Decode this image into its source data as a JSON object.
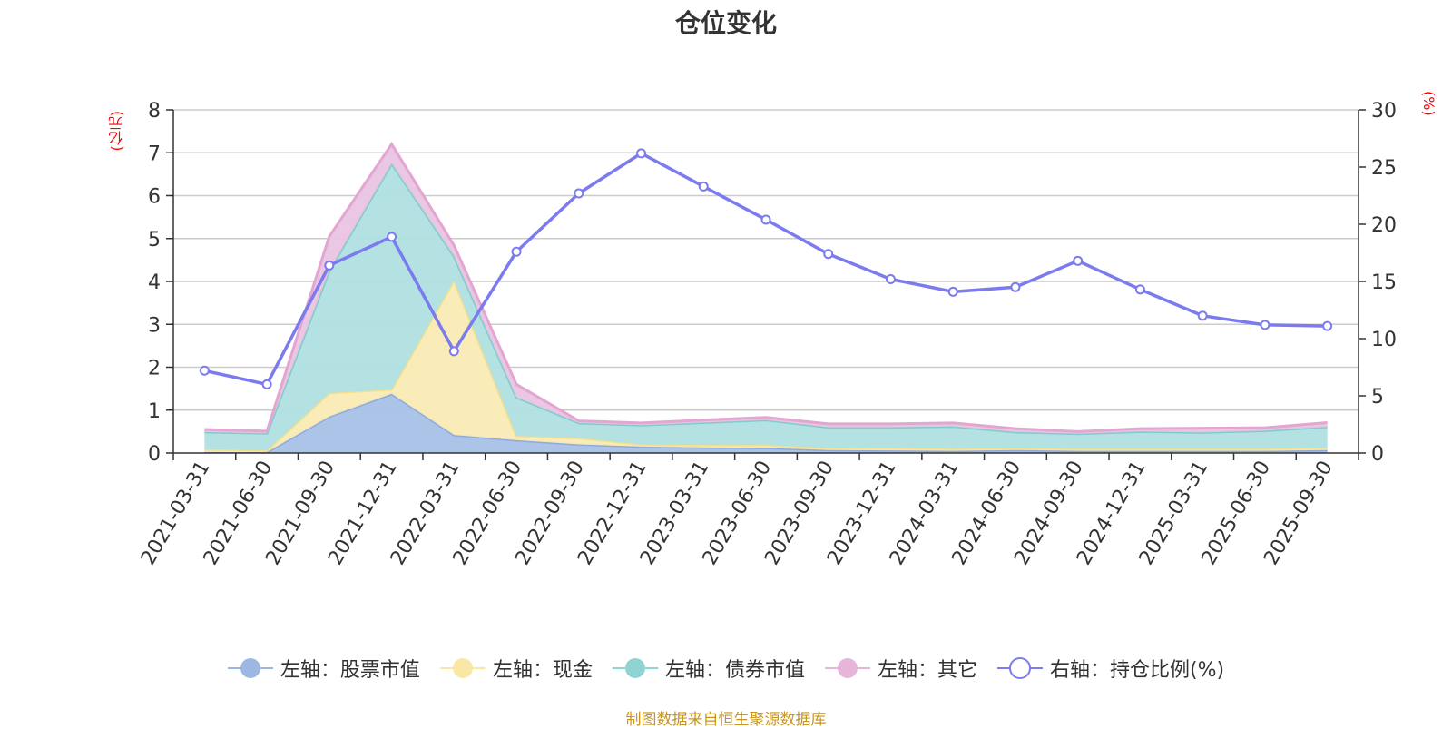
{
  "title": "仓位变化",
  "source": "制图数据来自恒生聚源数据库",
  "left_unit": "(亿元)",
  "right_unit": "(%)",
  "legend": [
    {
      "label": "左轴：股票市值",
      "color": "#9cb8e2",
      "marker": "filled"
    },
    {
      "label": "左轴：现金",
      "color": "#f9e7a6",
      "marker": "filled"
    },
    {
      "label": "左轴：债券市值",
      "color": "#8fd3d3",
      "marker": "filled"
    },
    {
      "label": "左轴：其它",
      "color": "#e8b5da",
      "marker": "filled"
    },
    {
      "label": "右轴：持仓比例(%)",
      "color": "#7b7bef",
      "marker": "hollow"
    }
  ],
  "chart_data": {
    "type": "area",
    "title": "仓位变化",
    "categories": [
      "2021-03-31",
      "2021-06-30",
      "2021-09-30",
      "2021-12-31",
      "2022-03-31",
      "2022-06-30",
      "2022-09-30",
      "2022-12-31",
      "2023-03-31",
      "2023-06-30",
      "2023-09-30",
      "2023-12-31",
      "2024-03-31",
      "2024-06-30",
      "2024-09-30",
      "2024-12-31",
      "2025-03-31",
      "2025-06-30",
      "2025-09-30"
    ],
    "left_axis": {
      "label": "(亿元)",
      "ylim": [
        0,
        8
      ],
      "ticks": [
        0,
        1,
        2,
        3,
        4,
        5,
        6,
        7,
        8
      ]
    },
    "right_axis": {
      "label": "(%)",
      "ylim": [
        0,
        30
      ],
      "ticks": [
        0,
        5,
        10,
        15,
        20,
        25,
        30
      ]
    },
    "stacked": true,
    "series": [
      {
        "name": "左轴：股票市值",
        "axis": "left",
        "color": "#a9c1e8",
        "values": [
          0.02,
          0.02,
          0.85,
          1.38,
          0.42,
          0.3,
          0.2,
          0.15,
          0.13,
          0.12,
          0.07,
          0.06,
          0.05,
          0.07,
          0.05,
          0.05,
          0.05,
          0.05,
          0.07
        ]
      },
      {
        "name": "左轴：现金",
        "axis": "left",
        "color": "#f9ebb4",
        "values": [
          0.07,
          0.04,
          0.55,
          0.1,
          3.6,
          0.1,
          0.15,
          0.05,
          0.06,
          0.07,
          0.05,
          0.06,
          0.05,
          0.04,
          0.05,
          0.05,
          0.05,
          0.05,
          0.06
        ]
      },
      {
        "name": "左轴：债券市值",
        "axis": "left",
        "color": "#b0e0e0",
        "values": [
          0.4,
          0.4,
          2.85,
          5.27,
          0.57,
          0.9,
          0.35,
          0.45,
          0.52,
          0.58,
          0.48,
          0.48,
          0.52,
          0.38,
          0.35,
          0.4,
          0.38,
          0.42,
          0.48
        ]
      },
      {
        "name": "左轴：其它",
        "axis": "left",
        "color": "#e9c4e0",
        "values": [
          0.06,
          0.05,
          0.8,
          0.45,
          0.25,
          0.3,
          0.05,
          0.05,
          0.06,
          0.06,
          0.08,
          0.08,
          0.08,
          0.08,
          0.05,
          0.07,
          0.1,
          0.07,
          0.1
        ]
      },
      {
        "name": "右轴：持仓比例(%)",
        "axis": "right",
        "color": "#7b7bef",
        "type": "line",
        "values": [
          7.2,
          6.0,
          16.4,
          18.9,
          8.9,
          17.6,
          22.7,
          26.2,
          23.3,
          20.4,
          17.4,
          15.2,
          14.1,
          14.5,
          16.8,
          14.3,
          12.0,
          11.2,
          11.1
        ]
      }
    ]
  }
}
